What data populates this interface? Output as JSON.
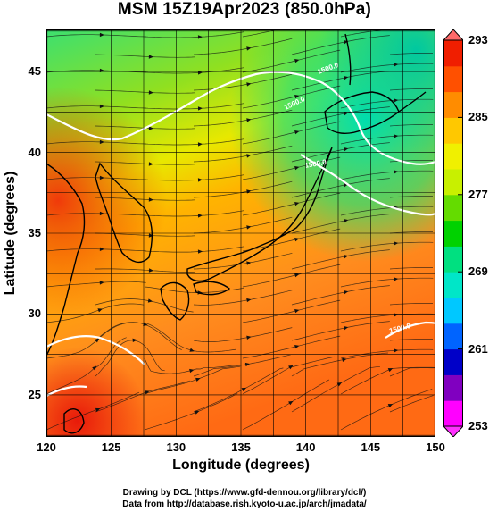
{
  "title": "MSM 15Z19Apr2023 (850.0hPa)",
  "x_axis": {
    "label": "Longitude (degrees)",
    "ticks": [
      "120",
      "125",
      "130",
      "135",
      "140",
      "145",
      "150"
    ],
    "range": [
      120,
      150
    ]
  },
  "y_axis": {
    "label": "Latitude  (degrees)",
    "ticks": [
      "25",
      "30",
      "35",
      "40",
      "45"
    ],
    "range": [
      22.4,
      47.6
    ]
  },
  "colorbar": {
    "ticks": [
      "293",
      "285",
      "277",
      "269",
      "261",
      "253"
    ],
    "range": [
      253,
      293
    ],
    "colors": [
      "#ff00ff",
      "#8000c0",
      "#0000c8",
      "#0064ff",
      "#00c8ff",
      "#00e6c8",
      "#00e080",
      "#00d200",
      "#64dc00",
      "#c8f000",
      "#f0f000",
      "#ffc800",
      "#ff8c00",
      "#ff5000",
      "#f01e00"
    ]
  },
  "contour_labels": [
    "1500.0",
    "1500.0",
    "1500.0",
    "1500.0"
  ],
  "footer": {
    "line1": "Drawing by DCL (https://www.gfd-dennou.org/library/dcl/)",
    "line2": "Data from http://database.rish.kyoto-u.ac.jp/arch/jmadata/"
  }
}
